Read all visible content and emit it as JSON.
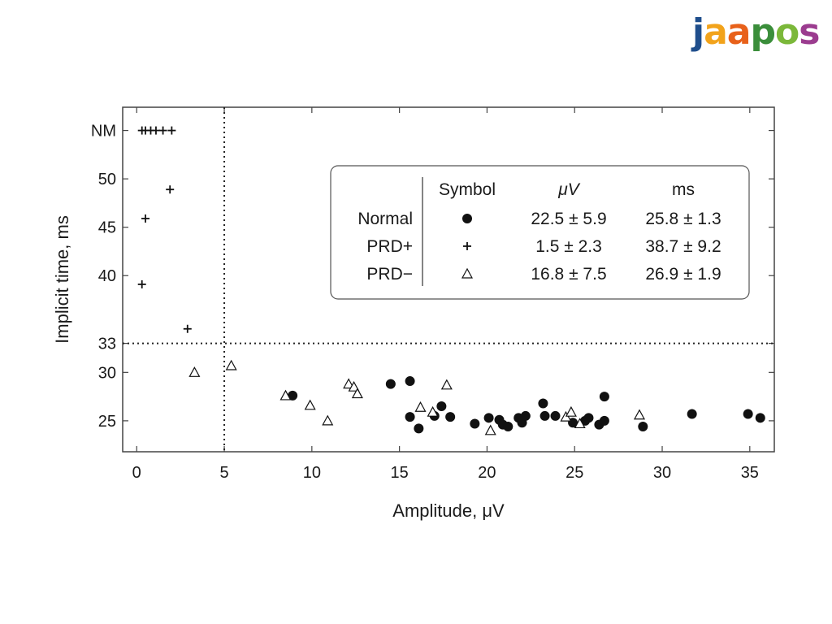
{
  "logo": {
    "text": "jaapos",
    "letters": [
      {
        "ch": "j",
        "color": "#1f4e8c"
      },
      {
        "ch": "a",
        "color": "#f2a31b"
      },
      {
        "ch": "a",
        "color": "#e8611a"
      },
      {
        "ch": "p",
        "color": "#3b8e3b"
      },
      {
        "ch": "o",
        "color": "#7bb83a"
      },
      {
        "ch": "s",
        "color": "#9b3c8f"
      }
    ]
  },
  "chart_data": {
    "type": "scatter",
    "xlabel": "Amplitude, μV",
    "ylabel": "Implicit time, ms",
    "xlim": [
      -0.8,
      36.4
    ],
    "ylim": [
      21.8,
      57.4
    ],
    "x_ticks": [
      0,
      5,
      10,
      15,
      20,
      25,
      30,
      35
    ],
    "y_ticks": [
      {
        "value": 25,
        "label": "25"
      },
      {
        "value": 30,
        "label": "30"
      },
      {
        "value": 33,
        "label": "33"
      },
      {
        "value": 40,
        "label": "40"
      },
      {
        "value": 45,
        "label": "45"
      },
      {
        "value": 50,
        "label": "50"
      },
      {
        "value": 55,
        "label": "NM"
      }
    ],
    "reference_lines": {
      "x": 5,
      "y": 33
    },
    "grid": false,
    "legend": {
      "placement": "top-right",
      "header": [
        "Symbol",
        "μV",
        "ms"
      ],
      "rows": [
        {
          "label": "Normal",
          "marker": "circle",
          "uv": "22.5 ± 5.9",
          "ms": "25.8 ± 1.3"
        },
        {
          "label": "PRD+",
          "marker": "plus",
          "uv": "1.5 ± 2.3",
          "ms": "38.7 ± 9.2"
        },
        {
          "label": "PRD−",
          "marker": "triangle",
          "uv": "16.8 ± 7.5",
          "ms": "26.9 ± 1.9"
        }
      ]
    },
    "series": [
      {
        "marker": "circle",
        "points": [
          [
            8.9,
            27.6
          ],
          [
            14.5,
            28.8
          ],
          [
            15.6,
            29.1
          ],
          [
            15.6,
            25.4
          ],
          [
            16.1,
            24.2
          ],
          [
            17.0,
            25.5
          ],
          [
            17.4,
            26.5
          ],
          [
            17.9,
            25.4
          ],
          [
            19.3,
            24.7
          ],
          [
            20.1,
            25.3
          ],
          [
            20.7,
            25.1
          ],
          [
            20.9,
            24.6
          ],
          [
            21.2,
            24.4
          ],
          [
            21.8,
            25.3
          ],
          [
            22.0,
            24.8
          ],
          [
            22.2,
            25.5
          ],
          [
            23.2,
            26.8
          ],
          [
            23.3,
            25.5
          ],
          [
            23.9,
            25.5
          ],
          [
            24.9,
            24.8
          ],
          [
            25.6,
            25.0
          ],
          [
            25.8,
            25.3
          ],
          [
            26.4,
            24.6
          ],
          [
            26.7,
            25.0
          ],
          [
            26.7,
            27.5
          ],
          [
            28.9,
            24.4
          ],
          [
            31.7,
            25.7
          ],
          [
            34.9,
            25.7
          ],
          [
            35.6,
            25.3
          ]
        ]
      },
      {
        "marker": "plus",
        "points": [
          [
            0.3,
            55
          ],
          [
            0.5,
            55
          ],
          [
            0.8,
            55
          ],
          [
            1.1,
            55
          ],
          [
            1.5,
            55
          ],
          [
            2.0,
            55
          ],
          [
            1.9,
            48.9
          ],
          [
            0.5,
            45.9
          ],
          [
            0.3,
            39.1
          ],
          [
            2.9,
            34.5
          ]
        ]
      },
      {
        "marker": "triangle",
        "points": [
          [
            3.3,
            30.0
          ],
          [
            5.4,
            30.7
          ],
          [
            8.5,
            27.6
          ],
          [
            9.9,
            26.6
          ],
          [
            10.9,
            25.0
          ],
          [
            12.1,
            28.8
          ],
          [
            12.4,
            28.5
          ],
          [
            12.6,
            27.8
          ],
          [
            16.2,
            26.4
          ],
          [
            16.9,
            25.9
          ],
          [
            17.7,
            28.7
          ],
          [
            20.2,
            24.0
          ],
          [
            24.5,
            25.4
          ],
          [
            24.8,
            25.9
          ],
          [
            25.3,
            24.7
          ],
          [
            28.7,
            25.6
          ]
        ]
      }
    ]
  }
}
